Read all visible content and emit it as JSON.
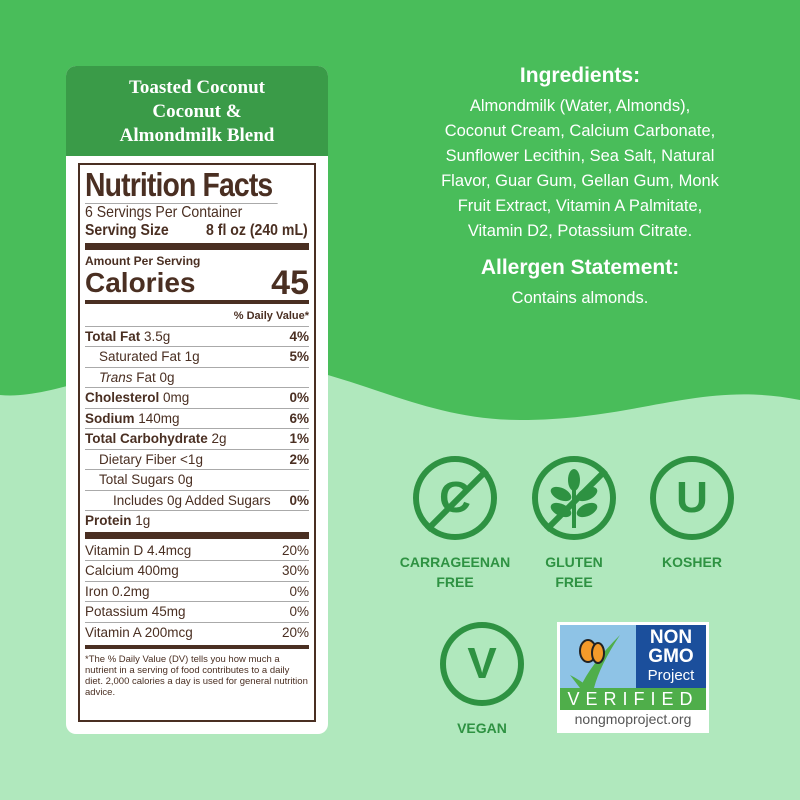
{
  "product": {
    "title_lines": [
      "Toasted Coconut",
      "Coconut &",
      "Almondmilk Blend"
    ]
  },
  "nutrition": {
    "title": "Nutrition Facts",
    "servings": "6 Servings Per Container",
    "serving_size_label": "Serving Size",
    "serving_size_value": "8 fl oz (240 mL)",
    "amount_per_serving": "Amount Per Serving",
    "calories_label": "Calories",
    "calories_value": "45",
    "dv_header": "% Daily Value*",
    "rows": [
      {
        "label": "Total Fat",
        "value": "3.5g",
        "dv": "4%"
      },
      {
        "label": "Saturated Fat",
        "value": "1g",
        "dv": "5%"
      },
      {
        "label": "Trans",
        "value": "Fat 0g",
        "dv": ""
      },
      {
        "label": "Cholesterol",
        "value": "0mg",
        "dv": "0%"
      },
      {
        "label": "Sodium",
        "value": "140mg",
        "dv": "6%"
      },
      {
        "label": "Total Carbohydrate",
        "value": "2g",
        "dv": "1%"
      },
      {
        "label": "Dietary Fiber",
        "value": "<1g",
        "dv": "2%"
      },
      {
        "label": "Total Sugars",
        "value": "0g",
        "dv": ""
      },
      {
        "label": "Includes 0g Added Sugars",
        "value": "",
        "dv": "0%"
      },
      {
        "label": "Protein",
        "value": "1g",
        "dv": ""
      }
    ],
    "vitamins": [
      {
        "label": "Vitamin D 4.4mcg",
        "dv": "20%"
      },
      {
        "label": "Calcium 400mg",
        "dv": "30%"
      },
      {
        "label": "Iron 0.2mg",
        "dv": "0%"
      },
      {
        "label": "Potassium 45mg",
        "dv": "0%"
      },
      {
        "label": "Vitamin A 200mcg",
        "dv": "20%"
      }
    ],
    "footnote": "*The % Daily Value (DV) tells you how much a nutrient in a serving of food contributes to a daily diet. 2,000 calories a day is used for general nutrition advice."
  },
  "ingredients": {
    "title": "Ingredients:",
    "lines": [
      "Almondmilk (Water, Almonds),",
      "Coconut Cream, Calcium Carbonate,",
      "Sunflower Lecithin, Sea Salt, Natural",
      "Flavor, Guar Gum, Gellan Gum, Monk",
      "Fruit Extract, Vitamin A Palmitate,",
      "Vitamin D2, Potassium Citrate."
    ]
  },
  "allergen": {
    "title": "Allergen Statement:",
    "text": "Contains almonds."
  },
  "badges": {
    "carrageenan": [
      "CARRAGEENAN",
      "FREE"
    ],
    "gluten": [
      "GLUTEN",
      "FREE"
    ],
    "kosher": "KOSHER",
    "kosher_symbol": "U",
    "vegan": "VEGAN",
    "vegan_symbol": "V",
    "carrageenan_symbol": "C"
  },
  "nongmo": {
    "line1": "NON",
    "line2": "GMO",
    "line3": "Project",
    "verified": "VERIFIED",
    "url": "nongmoproject.org"
  },
  "colors": {
    "top_bg": "#49bd5a",
    "bottom_bg": "#b0e8bd",
    "badge_green": "#2e9242",
    "label_brown": "#4a2f22"
  }
}
